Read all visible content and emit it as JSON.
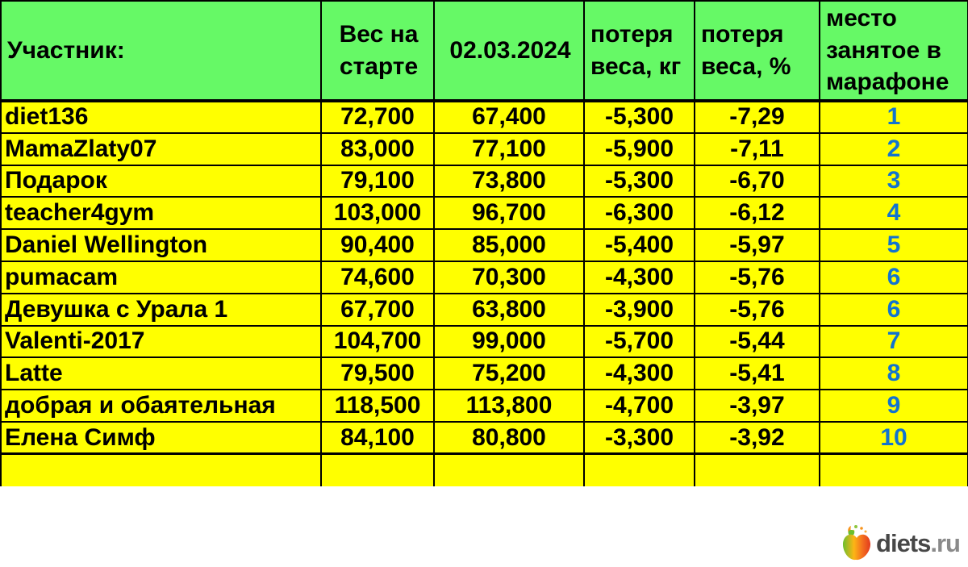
{
  "table": {
    "columns": [
      "Участник:",
      "Вес на старте",
      "02.03.2024",
      "потеря веса, кг",
      "потеря веса, %",
      "место занятое в марафоне"
    ],
    "rows": [
      [
        "diet136",
        "72,700",
        "67,400",
        "-5,300",
        "-7,29",
        "1"
      ],
      [
        "MamaZlaty07",
        "83,000",
        "77,100",
        "-5,900",
        "-7,11",
        "2"
      ],
      [
        "Подарок",
        "79,100",
        "73,800",
        "-5,300",
        "-6,70",
        "3"
      ],
      [
        "teacher4gym",
        "103,000",
        "96,700",
        "-6,300",
        "-6,12",
        "4"
      ],
      [
        "Daniel Wellington",
        "90,400",
        "85,000",
        "-5,400",
        "-5,97",
        "5"
      ],
      [
        "pumacam",
        "74,600",
        "70,300",
        "-4,300",
        "-5,76",
        "6"
      ],
      [
        "Девушка с Урала 1",
        "67,700",
        "63,800",
        "-3,900",
        "-5,76",
        "6"
      ],
      [
        "Valenti-2017",
        "104,700",
        "99,000",
        "-5,700",
        "-5,44",
        "7"
      ],
      [
        "Latte",
        "79,500",
        "75,200",
        "-4,300",
        "-5,41",
        "8"
      ],
      [
        "добрая и обаятельная",
        "118,500",
        "113,800",
        "-4,700",
        "-3,97",
        "9"
      ],
      [
        "Елена Симф",
        "84,100",
        "80,800",
        "-3,300",
        "-3,92",
        "10"
      ]
    ]
  },
  "footer": {
    "logo_name": "diets",
    "logo_tld": ".ru"
  },
  "colors": {
    "header_bg": "#66F966",
    "row_bg": "#FFFF00",
    "place_text": "#1173D0",
    "border": "#000000",
    "logo_name_text": "#474747",
    "logo_tld_text": "#8A8A8A"
  }
}
